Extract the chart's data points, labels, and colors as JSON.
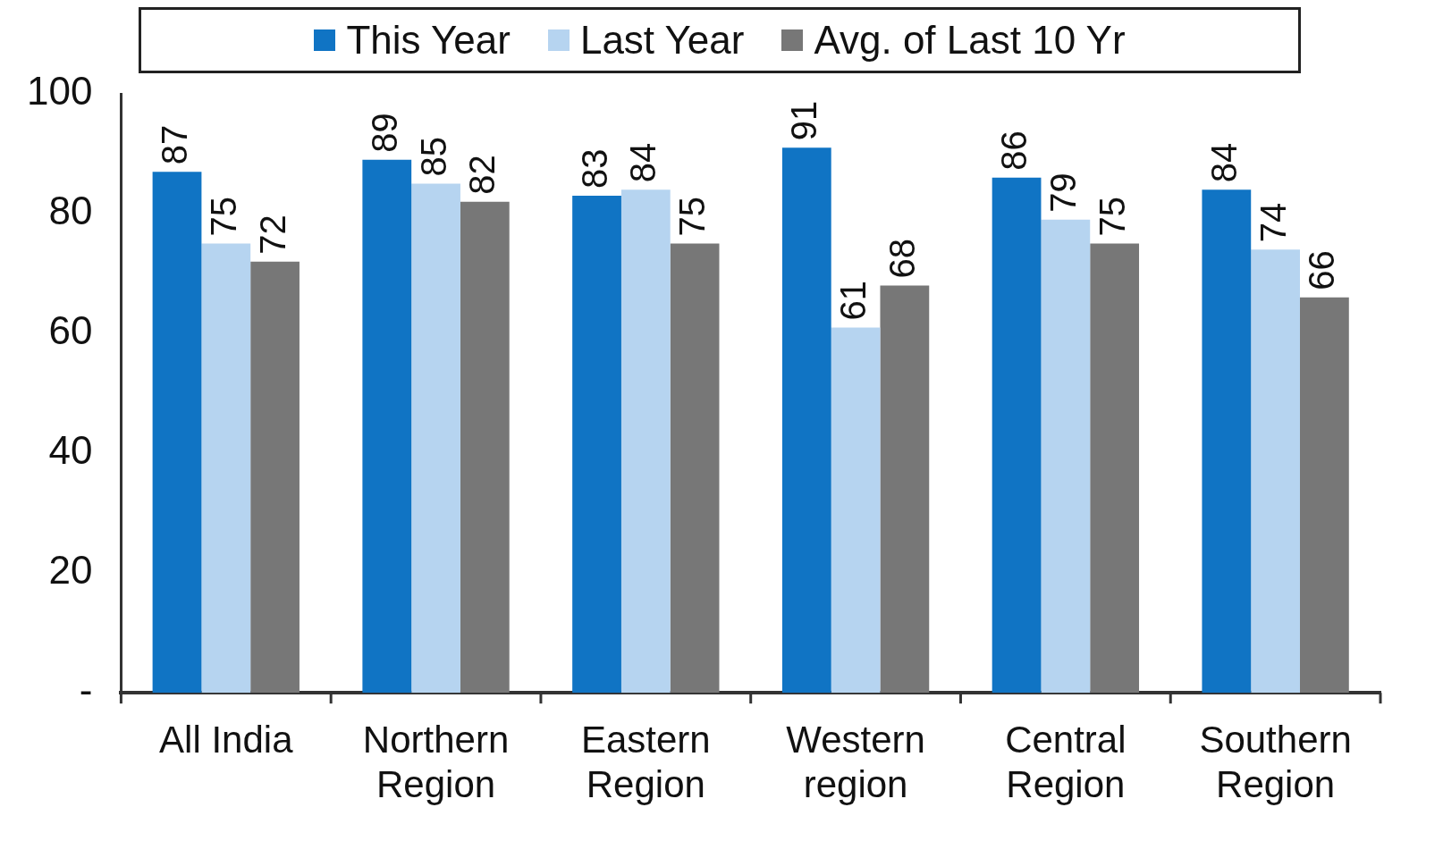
{
  "chart_data": {
    "type": "bar",
    "categories": [
      "All India",
      "Northern Region",
      "Eastern Region",
      "Western region",
      "Central Region",
      "Southern Region"
    ],
    "series": [
      {
        "name": "This Year",
        "color": "#1074c4",
        "values": [
          87,
          89,
          83,
          91,
          86,
          84
        ]
      },
      {
        "name": "Last Year",
        "color": "#b6d4f0",
        "values": [
          75,
          85,
          84,
          61,
          79,
          74
        ]
      },
      {
        "name": "Avg. of Last 10 Yr",
        "color": "#777777",
        "values": [
          72,
          82,
          75,
          68,
          75,
          66
        ]
      }
    ],
    "ylim": [
      0,
      100
    ],
    "yticks": [
      {
        "value": 0,
        "label": "-"
      },
      20,
      40,
      60,
      80,
      100
    ],
    "grid": false,
    "legend": "top",
    "data_labels": true
  }
}
